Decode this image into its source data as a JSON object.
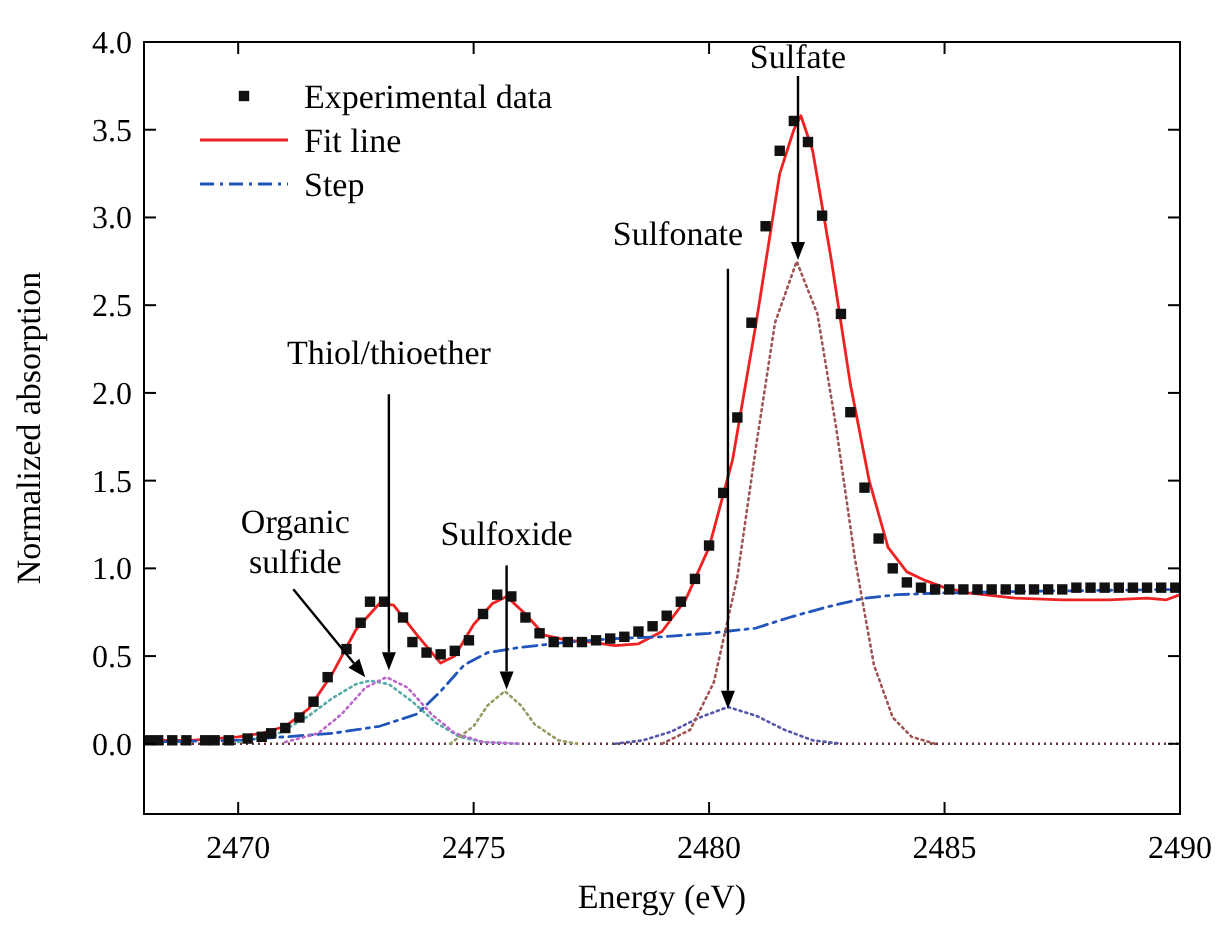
{
  "chart_data": {
    "type": "line",
    "xlabel": "Energy (eV)",
    "ylabel": "Normalized absorption",
    "xlim": [
      2468,
      2490
    ],
    "xticks": [
      2470,
      2475,
      2480,
      2485,
      2490
    ],
    "ylim": [
      -0.4,
      4.0
    ],
    "yticks": [
      {
        "value": 0,
        "label": "0.0"
      },
      0.5,
      {
        "value": 1,
        "label": "1.0"
      },
      1.5,
      {
        "value": 2,
        "label": "2.0"
      },
      2.5,
      {
        "value": 3,
        "label": "3.0"
      },
      3.5,
      {
        "value": 4,
        "label": "4.0"
      }
    ],
    "grid": false,
    "legend": "top left",
    "series": [
      {
        "name": "Experimental data",
        "type": "scatter",
        "marker": "square",
        "color": "#111111",
        "x": [
          2468.1,
          2468.3,
          2468.6,
          2468.9,
          2469.3,
          2469.5,
          2469.8,
          2470.2,
          2470.5,
          2470.7,
          2471.0,
          2471.3,
          2471.6,
          2471.9,
          2472.3,
          2472.6,
          2472.8,
          2473.1,
          2473.5,
          2473.7,
          2474.0,
          2474.3,
          2474.6,
          2474.9,
          2475.2,
          2475.5,
          2475.8,
          2476.1,
          2476.4,
          2476.7,
          2477.0,
          2477.3,
          2477.6,
          2477.9,
          2478.2,
          2478.5,
          2478.8,
          2479.1,
          2479.4,
          2479.7,
          2480.0,
          2480.3,
          2480.6,
          2480.9,
          2481.2,
          2481.5,
          2481.8,
          2482.1,
          2482.4,
          2482.8,
          2483.0,
          2483.3,
          2483.6,
          2483.9,
          2484.2,
          2484.5,
          2484.8,
          2485.1,
          2485.4,
          2485.7,
          2486.0,
          2486.3,
          2486.6,
          2486.9,
          2487.2,
          2487.5,
          2487.8,
          2488.1,
          2488.4,
          2488.7,
          2489.0,
          2489.3,
          2489.6,
          2489.9
        ],
        "values": [
          0.02,
          0.02,
          0.02,
          0.02,
          0.02,
          0.02,
          0.02,
          0.03,
          0.04,
          0.06,
          0.09,
          0.15,
          0.24,
          0.38,
          0.54,
          0.69,
          0.81,
          0.81,
          0.72,
          0.58,
          0.52,
          0.51,
          0.53,
          0.59,
          0.74,
          0.85,
          0.84,
          0.72,
          0.63,
          0.58,
          0.58,
          0.58,
          0.59,
          0.6,
          0.61,
          0.64,
          0.67,
          0.73,
          0.81,
          0.94,
          1.13,
          1.43,
          1.86,
          2.4,
          2.95,
          3.38,
          3.55,
          3.43,
          3.01,
          2.45,
          1.89,
          1.46,
          1.17,
          1.0,
          0.92,
          0.89,
          0.88,
          0.88,
          0.88,
          0.88,
          0.88,
          0.88,
          0.88,
          0.88,
          0.88,
          0.88,
          0.89,
          0.89,
          0.89,
          0.89,
          0.89,
          0.89,
          0.89,
          0.89
        ]
      },
      {
        "name": "Fit line",
        "line_style": "solid",
        "color": "#ee2222",
        "x": [
          2468,
          2469,
          2470,
          2470.5,
          2471,
          2471.5,
          2472,
          2472.5,
          2473,
          2473.3,
          2473.8,
          2474.3,
          2474.6,
          2475,
          2475.4,
          2475.7,
          2476.1,
          2476.5,
          2477,
          2477.5,
          2478,
          2478.5,
          2479,
          2479.5,
          2480,
          2480.5,
          2481,
          2481.5,
          2481.8,
          2481.95,
          2482.2,
          2482.6,
          2483,
          2483.4,
          2483.8,
          2484.2,
          2484.6,
          2485,
          2485.5,
          2486.5,
          2487.5,
          2488.5,
          2489.3,
          2489.7,
          2490
        ],
        "values": [
          0.02,
          0.02,
          0.04,
          0.06,
          0.1,
          0.2,
          0.4,
          0.65,
          0.8,
          0.79,
          0.62,
          0.46,
          0.5,
          0.68,
          0.8,
          0.84,
          0.74,
          0.62,
          0.59,
          0.58,
          0.56,
          0.57,
          0.64,
          0.82,
          1.12,
          1.62,
          2.4,
          3.25,
          3.5,
          3.58,
          3.38,
          2.75,
          2.05,
          1.5,
          1.12,
          0.98,
          0.93,
          0.89,
          0.86,
          0.83,
          0.82,
          0.82,
          0.83,
          0.82,
          0.85
        ]
      },
      {
        "name": "Step",
        "line_style": "dashdot",
        "color": "#2255bb",
        "x": [
          2468,
          2470,
          2471,
          2472,
          2473,
          2473.8,
          2474.3,
          2474.8,
          2475.3,
          2476,
          2477,
          2478,
          2479,
          2480,
          2481,
          2481.7,
          2482.5,
          2483.3,
          2484,
          2485,
          2487,
          2490
        ],
        "values": [
          0.01,
          0.02,
          0.04,
          0.06,
          0.1,
          0.17,
          0.3,
          0.45,
          0.52,
          0.55,
          0.58,
          0.6,
          0.61,
          0.63,
          0.66,
          0.72,
          0.78,
          0.83,
          0.85,
          0.86,
          0.87,
          0.88
        ]
      },
      {
        "line_style": "dotted",
        "color": "#55aaaa",
        "x": [
          2470.0,
          2470.8,
          2471.5,
          2472.0,
          2472.5,
          2472.8,
          2473.2,
          2473.7,
          2474.2,
          2474.7,
          2475.2,
          2476
        ],
        "values": [
          0.01,
          0.05,
          0.16,
          0.26,
          0.34,
          0.36,
          0.34,
          0.24,
          0.12,
          0.04,
          0.01,
          0
        ]
      },
      {
        "line_style": "dotted",
        "color": "#bb66cc",
        "x": [
          2471.0,
          2471.7,
          2472.2,
          2472.7,
          2473.15,
          2473.6,
          2474.1,
          2474.6,
          2475.2,
          2476
        ],
        "values": [
          0.01,
          0.06,
          0.17,
          0.32,
          0.38,
          0.32,
          0.17,
          0.06,
          0.01,
          0
        ]
      },
      {
        "line_style": "dotted",
        "color": "#999966",
        "x": [
          2474.5,
          2475.0,
          2475.3,
          2475.66,
          2476.0,
          2476.3,
          2476.8,
          2477.2
        ],
        "values": [
          0,
          0.1,
          0.22,
          0.3,
          0.22,
          0.11,
          0.02,
          0
        ]
      },
      {
        "line_style": "dotted",
        "color": "#5555aa",
        "x": [
          2478.0,
          2478.6,
          2479.2,
          2479.8,
          2480.4,
          2481.0,
          2481.6,
          2482.2,
          2482.8
        ],
        "values": [
          0,
          0.02,
          0.07,
          0.15,
          0.21,
          0.16,
          0.08,
          0.02,
          0
        ]
      },
      {
        "line_style": "dotted",
        "color": "#a05555",
        "x": [
          2479.0,
          2479.6,
          2480.1,
          2480.6,
          2481.0,
          2481.4,
          2481.86,
          2482.3,
          2482.7,
          2483.1,
          2483.5,
          2483.9,
          2484.3,
          2484.8
        ],
        "values": [
          0,
          0.08,
          0.35,
          0.95,
          1.7,
          2.4,
          2.75,
          2.45,
          1.8,
          1.05,
          0.45,
          0.15,
          0.04,
          0
        ]
      }
    ],
    "ref_lines": [
      {
        "axis": "y",
        "value": 0,
        "color": "#663333",
        "line_style": "dotted"
      }
    ],
    "annotations": [
      {
        "text": "Organic sulfide",
        "x": 2472.7,
        "y": 0.38
      },
      {
        "text": "Thiol/thioether",
        "x": 2473.2,
        "y": 0.42
      },
      {
        "text": "Sulfoxide",
        "x": 2475.7,
        "y": 0.31
      },
      {
        "text": "Sulfonate",
        "x": 2480.4,
        "y": 0.2
      },
      "Sulfate"
    ]
  }
}
